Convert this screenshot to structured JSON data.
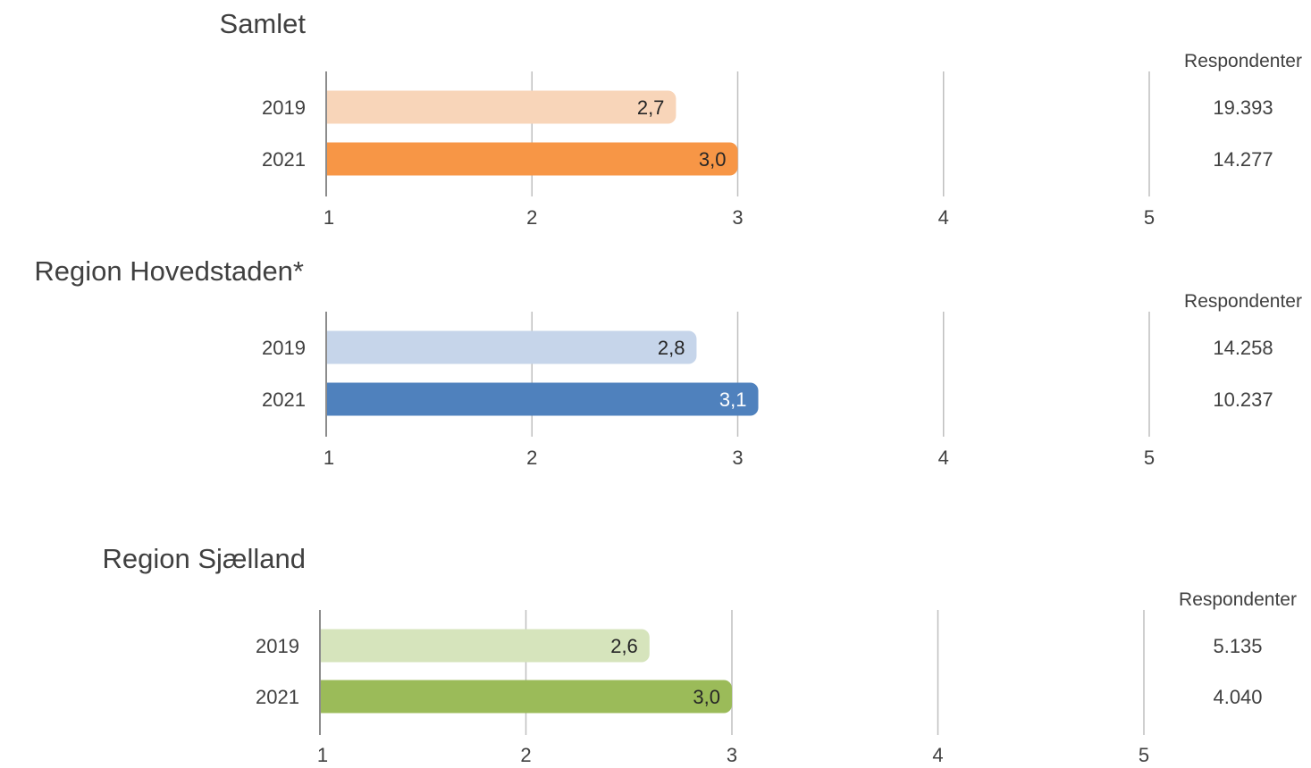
{
  "chart_data": [
    {
      "type": "bar",
      "orientation": "horizontal",
      "title": "Samlet",
      "categories": [
        "2019",
        "2021"
      ],
      "values": [
        2.7,
        3.0
      ],
      "value_labels": [
        "2,7",
        "3,0"
      ],
      "bar_colors": [
        "#f8d5b9",
        "#f79646"
      ],
      "value_label_colors": [
        "#262626",
        "#262626"
      ],
      "xlim": [
        1,
        5
      ],
      "xticks": [
        "1",
        "2",
        "3",
        "4",
        "5"
      ],
      "grid": true,
      "respondents_header": "Respondenter",
      "respondents": [
        "19.393",
        "14.277"
      ]
    },
    {
      "type": "bar",
      "orientation": "horizontal",
      "title": "Region Hovedstaden*",
      "categories": [
        "2019",
        "2021"
      ],
      "values": [
        2.8,
        3.1
      ],
      "value_labels": [
        "2,8",
        "3,1"
      ],
      "bar_colors": [
        "#c6d5ea",
        "#4f81bd"
      ],
      "value_label_colors": [
        "#262626",
        "#ffffff"
      ],
      "xlim": [
        1,
        5
      ],
      "xticks": [
        "1",
        "2",
        "3",
        "4",
        "5"
      ],
      "grid": true,
      "respondents_header": "Respondenter",
      "respondents": [
        "14.258",
        "10.237"
      ]
    },
    {
      "type": "bar",
      "orientation": "horizontal",
      "title": "Region Sjælland",
      "categories": [
        "2019",
        "2021"
      ],
      "values": [
        2.6,
        3.0
      ],
      "value_labels": [
        "2,6",
        "3,0"
      ],
      "bar_colors": [
        "#d6e4bc",
        "#9bbb59"
      ],
      "value_label_colors": [
        "#262626",
        "#262626"
      ],
      "xlim": [
        1,
        5
      ],
      "xticks": [
        "1",
        "2",
        "3",
        "4",
        "5"
      ],
      "grid": true,
      "respondents_header": "Respondenter",
      "respondents": [
        "5.135",
        "4.040"
      ]
    }
  ]
}
